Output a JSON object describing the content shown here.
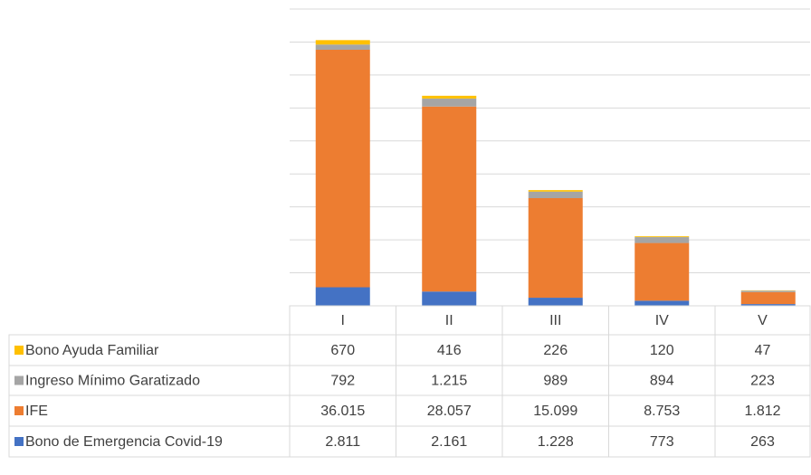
{
  "chart_data": {
    "type": "bar",
    "stacked": true,
    "categories": [
      "I",
      "II",
      "III",
      "IV",
      "V"
    ],
    "series": [
      {
        "name": "Bono Ayuda Familiar",
        "color": "#ffc000",
        "values": [
          670,
          416,
          226,
          120,
          47
        ],
        "value_labels": [
          "670",
          "416",
          "226",
          "120",
          "47"
        ]
      },
      {
        "name": "Ingreso Mínimo Garatizado",
        "color": "#a5a5a5",
        "values": [
          792,
          1215,
          989,
          894,
          223
        ],
        "value_labels": [
          "792",
          "1.215",
          "989",
          "894",
          "223"
        ]
      },
      {
        "name": "IFE",
        "color": "#ed7d31",
        "values": [
          36015,
          28057,
          15099,
          8753,
          1812
        ],
        "value_labels": [
          "36.015",
          "28.057",
          "15.099",
          "8.753",
          "1.812"
        ]
      },
      {
        "name": "Bono de Emergencia Covid-19",
        "color": "#4472c4",
        "values": [
          2811,
          2161,
          1228,
          773,
          263
        ],
        "value_labels": [
          "2.811",
          "2.161",
          "1.228",
          "773",
          "263"
        ]
      }
    ],
    "ylim": [
      0,
      45000
    ],
    "yticks": [
      0,
      5000,
      10000,
      15000,
      20000,
      25000,
      30000,
      35000,
      40000,
      45000
    ],
    "grid": true
  }
}
